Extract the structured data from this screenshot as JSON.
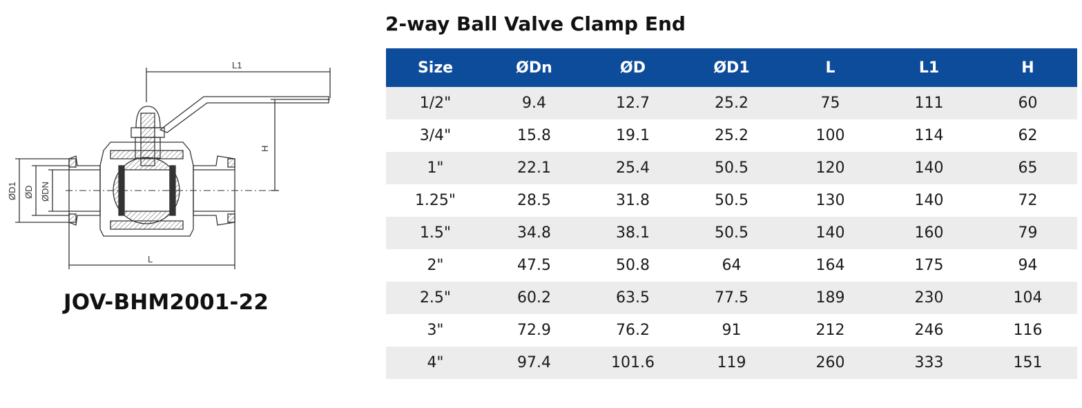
{
  "title": "2-way Ball Valve Clamp End",
  "model_code": "JOV-BHM2001-22",
  "drawing": {
    "labels": {
      "l1": "L1",
      "h": "H",
      "l": "L",
      "d1": "ØD1",
      "d": "ØD",
      "dn": "ØDN"
    }
  },
  "table": {
    "headers": [
      "Size",
      "ØDn",
      "ØD",
      "ØD1",
      "L",
      "L1",
      "H"
    ],
    "rows": [
      [
        "1/2\"",
        "9.4",
        "12.7",
        "25.2",
        "75",
        "111",
        "60"
      ],
      [
        "3/4\"",
        "15.8",
        "19.1",
        "25.2",
        "100",
        "114",
        "62"
      ],
      [
        "1\"",
        "22.1",
        "25.4",
        "50.5",
        "120",
        "140",
        "65"
      ],
      [
        "1.25\"",
        "28.5",
        "31.8",
        "50.5",
        "130",
        "140",
        "72"
      ],
      [
        "1.5\"",
        "34.8",
        "38.1",
        "50.5",
        "140",
        "160",
        "79"
      ],
      [
        "2\"",
        "47.5",
        "50.8",
        "64",
        "164",
        "175",
        "94"
      ],
      [
        "2.5\"",
        "60.2",
        "63.5",
        "77.5",
        "189",
        "230",
        "104"
      ],
      [
        "3\"",
        "72.9",
        "76.2",
        "91",
        "212",
        "246",
        "116"
      ],
      [
        "4\"",
        "97.4",
        "101.6",
        "119",
        "260",
        "333",
        "151"
      ]
    ]
  },
  "colors": {
    "header_bg": "#0d4c9b",
    "row_alt": "#ececec"
  }
}
